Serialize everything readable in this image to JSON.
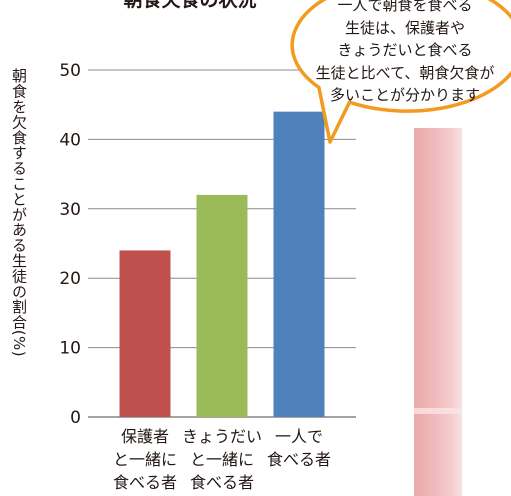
{
  "colors": {
    "gridline": "#8c8c8c",
    "axis": "#6e6e6e",
    "callout_border": "#f29b1e",
    "callout_fill": "#ffffff"
  },
  "callout": {
    "lines": [
      "一人で朝食を食べる",
      "生徒は、保護者や",
      "きょうだいと食べる",
      "生徒と比べて、朝食欠食が",
      "多いことが分かります"
    ]
  },
  "chart_data": {
    "type": "bar",
    "title": "朝食欠食の状況",
    "categories": [
      "保護者\nと一緒に\n食べる者",
      "きょうだい\nと一緒に\n食べる者",
      "一人で\n食べる者"
    ],
    "values": [
      24,
      32,
      44
    ],
    "bar_colors": [
      "#c0504d",
      "#9bbb59",
      "#4f81bd"
    ],
    "ylabel": "朝食を欠食することがある生徒の割合(%)",
    "ylim": [
      0,
      50
    ],
    "yticks": [
      0,
      10,
      20,
      30,
      40,
      50
    ],
    "grid": true,
    "legend": "none"
  }
}
